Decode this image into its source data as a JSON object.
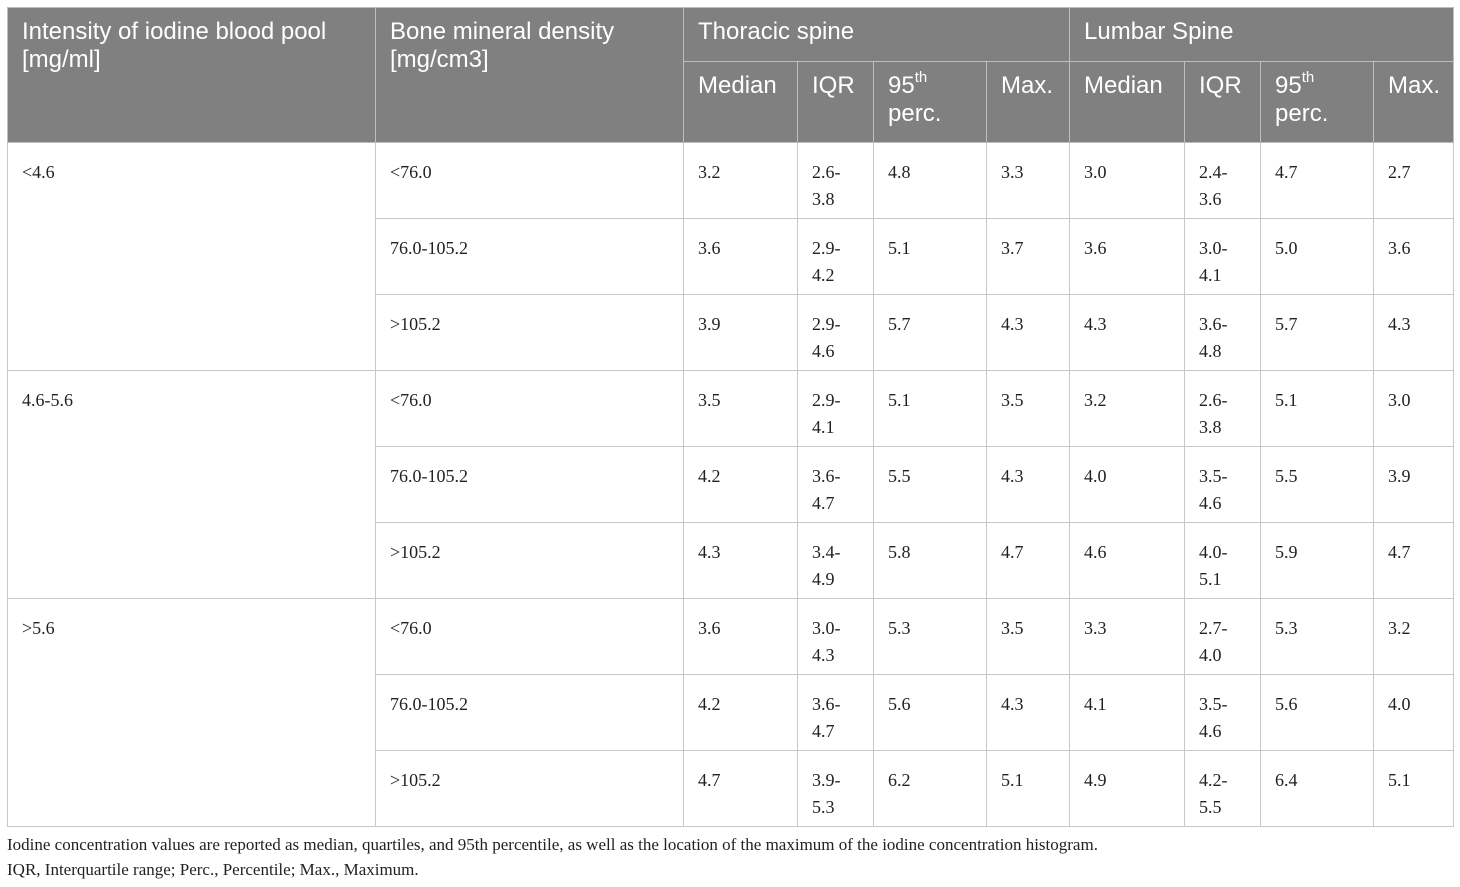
{
  "header": {
    "col_intensity": "Intensity of iodine blood pool [mg/ml]",
    "col_bmd": "Bone mineral density [mg/cm3]",
    "group_thoracic": "Thoracic spine",
    "group_lumbar": "Lumbar Spine",
    "sub": {
      "median": "Median",
      "iqr": "IQR",
      "p95_num": "95",
      "p95_sup": "th",
      "p95_word": "perc.",
      "max": "Max."
    }
  },
  "groups": [
    {
      "intensity": "<4.6",
      "rows": [
        {
          "bmd": "<76.0",
          "t_median": "3.2",
          "t_iqr_a": "2.6-",
          "t_iqr_b": "3.8",
          "t_p95": "4.8",
          "t_max": "3.3",
          "l_median": "3.0",
          "l_iqr_a": "2.4-",
          "l_iqr_b": "3.6",
          "l_p95": "4.7",
          "l_max": "2.7"
        },
        {
          "bmd": "76.0-105.2",
          "t_median": "3.6",
          "t_iqr_a": "2.9-",
          "t_iqr_b": "4.2",
          "t_p95": "5.1",
          "t_max": "3.7",
          "l_median": "3.6",
          "l_iqr_a": "3.0-",
          "l_iqr_b": "4.1",
          "l_p95": "5.0",
          "l_max": "3.6"
        },
        {
          "bmd": ">105.2",
          "t_median": "3.9",
          "t_iqr_a": "2.9-",
          "t_iqr_b": "4.6",
          "t_p95": "5.7",
          "t_max": "4.3",
          "l_median": "4.3",
          "l_iqr_a": "3.6-",
          "l_iqr_b": "4.8",
          "l_p95": "5.7",
          "l_max": "4.3"
        }
      ]
    },
    {
      "intensity": "4.6-5.6",
      "rows": [
        {
          "bmd": "<76.0",
          "t_median": "3.5",
          "t_iqr_a": "2.9-",
          "t_iqr_b": "4.1",
          "t_p95": "5.1",
          "t_max": "3.5",
          "l_median": "3.2",
          "l_iqr_a": "2.6-",
          "l_iqr_b": "3.8",
          "l_p95": "5.1",
          "l_max": "3.0"
        },
        {
          "bmd": "76.0-105.2",
          "t_median": "4.2",
          "t_iqr_a": "3.6-",
          "t_iqr_b": "4.7",
          "t_p95": "5.5",
          "t_max": "4.3",
          "l_median": "4.0",
          "l_iqr_a": "3.5-",
          "l_iqr_b": "4.6",
          "l_p95": "5.5",
          "l_max": "3.9"
        },
        {
          "bmd": ">105.2",
          "t_median": "4.3",
          "t_iqr_a": "3.4-",
          "t_iqr_b": "4.9",
          "t_p95": "5.8",
          "t_max": "4.7",
          "l_median": "4.6",
          "l_iqr_a": "4.0-",
          "l_iqr_b": "5.1",
          "l_p95": "5.9",
          "l_max": "4.7"
        }
      ]
    },
    {
      "intensity": ">5.6",
      "rows": [
        {
          "bmd": "<76.0",
          "t_median": "3.6",
          "t_iqr_a": "3.0-",
          "t_iqr_b": "4.3",
          "t_p95": "5.3",
          "t_max": "3.5",
          "l_median": "3.3",
          "l_iqr_a": "2.7-",
          "l_iqr_b": "4.0",
          "l_p95": "5.3",
          "l_max": "3.2"
        },
        {
          "bmd": "76.0-105.2",
          "t_median": "4.2",
          "t_iqr_a": "3.6-",
          "t_iqr_b": "4.7",
          "t_p95": "5.6",
          "t_max": "4.3",
          "l_median": "4.1",
          "l_iqr_a": "3.5-",
          "l_iqr_b": "4.6",
          "l_p95": "5.6",
          "l_max": "4.0"
        },
        {
          "bmd": ">105.2",
          "t_median": "4.7",
          "t_iqr_a": "3.9-",
          "t_iqr_b": "5.3",
          "t_p95": "6.2",
          "t_max": "5.1",
          "l_median": "4.9",
          "l_iqr_a": "4.2-",
          "l_iqr_b": "5.5",
          "l_p95": "6.4",
          "l_max": "5.1"
        }
      ]
    }
  ],
  "footnotes": {
    "line1": "Iodine concentration values are reported as median, quartiles, and 95th percentile, as well as the location of the maximum of the iodine concentration histogram.",
    "line2": "IQR, Interquartile range; Perc., Percentile; Max., Maximum."
  },
  "colors": {
    "header_bg": "#808080",
    "header_text": "#ffffff",
    "grid_line": "#c8c8c8",
    "body_text": "#222222"
  }
}
